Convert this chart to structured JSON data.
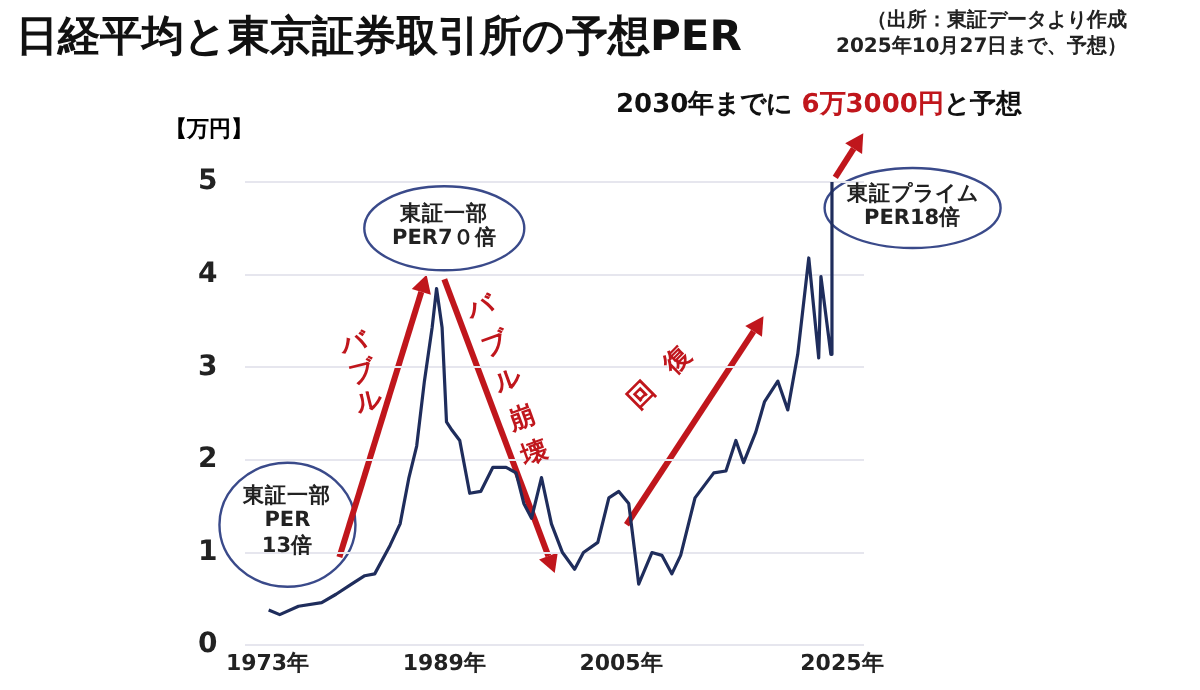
{
  "chart_data": {
    "type": "line",
    "title": "日経平均と東京証券取引所の予想PER",
    "subtitle": "（出所：東証データより作成\n2025年10月27日まで、予想）",
    "ylabel": "【万円】",
    "x": [
      1973.1,
      1974.1,
      1975.8,
      1977.9,
      1979.2,
      1980.6,
      1981.8,
      1982.7,
      1984.1,
      1985.0,
      1985.8,
      1986.5,
      1987.2,
      1987.9,
      1988.3,
      1988.8,
      1989.2,
      1989.7,
      1990.4,
      1991.3,
      1992.3,
      1993.4,
      1994.6,
      1995.5,
      1996.2,
      1996.9,
      1997.8,
      1998.7,
      1999.7,
      2000.8,
      2001.6,
      2002.9,
      2003.9,
      2004.8,
      2005.7,
      2006.4,
      2006.6,
      2007.8,
      2008.7,
      2009.6,
      2010.4,
      2011.7,
      2013.4,
      2014.5,
      2015.4,
      2016.1,
      2017.2,
      2018.0,
      2019.2,
      2020.1,
      2021.0,
      2022.0,
      2022.9,
      2023.1,
      2024.0,
      2024.1
    ],
    "values": [
      0.38,
      0.33,
      0.42,
      0.46,
      0.55,
      0.66,
      0.75,
      0.77,
      1.08,
      1.31,
      1.81,
      2.15,
      2.85,
      3.43,
      3.85,
      3.43,
      2.41,
      2.32,
      2.21,
      1.64,
      1.66,
      1.92,
      1.92,
      1.86,
      1.53,
      1.37,
      1.81,
      1.31,
      1.0,
      0.82,
      1.0,
      1.11,
      1.59,
      1.66,
      1.53,
      0.86,
      0.66,
      1.0,
      0.97,
      0.77,
      0.97,
      1.59,
      1.86,
      1.88,
      2.21,
      1.97,
      2.3,
      2.63,
      2.85,
      2.54,
      3.14,
      4.18,
      3.1,
      3.98,
      3.14,
      5.0
    ],
    "color": "#1f2d5c",
    "xlim": [
      1971,
      2027
    ],
    "xticks": [
      {
        "value": 1973,
        "label": "1973年"
      },
      {
        "value": 1989,
        "label": "1989年"
      },
      {
        "value": 2005,
        "label": "2005年"
      },
      {
        "value": 2025,
        "label": "2025年"
      }
    ],
    "ylim": [
      0,
      5
    ],
    "yticks": [
      0,
      1,
      2,
      3,
      4,
      5
    ],
    "grid": "y",
    "annotations": [
      "東証一部\nPER\n13倍",
      "東証一部\nPER7０倍",
      "東証プライム\nPER18倍",
      "バブル",
      "バブル崩壊",
      "回復",
      "2030年までに",
      "6万3000円",
      "と予想"
    ]
  }
}
